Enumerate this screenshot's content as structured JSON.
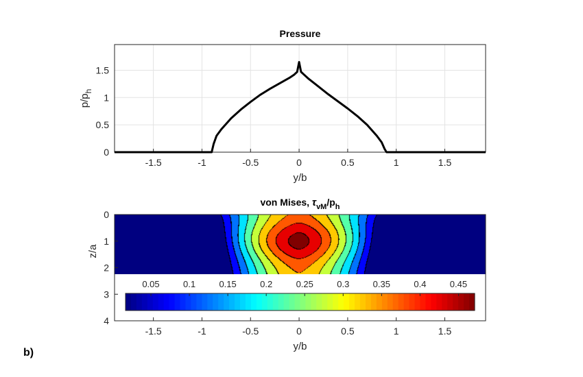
{
  "panel_label": "b)",
  "chart_data": [
    {
      "type": "line",
      "title": "Pressure",
      "xlabel": "y/b",
      "ylabel": "p/p",
      "ylabel_sub": "h",
      "xlim": [
        -1.9,
        1.92
      ],
      "ylim": [
        0,
        1.97
      ],
      "xticks": [
        -1.5,
        -1,
        -0.5,
        0,
        0.5,
        1,
        1.5
      ],
      "xtick_labels": [
        "-1.5",
        "-1",
        "-0.5",
        "0",
        "0.5",
        "1",
        "1.5"
      ],
      "yticks": [
        0,
        0.5,
        1,
        1.5
      ],
      "ytick_labels": [
        "0",
        "0.5",
        "1",
        "1.5"
      ],
      "grid": true,
      "series_color": "#000000",
      "contact_half_width": 0.9,
      "x": [
        -1.9,
        -0.9,
        -0.88,
        -0.85,
        -0.8,
        -0.7,
        -0.6,
        -0.5,
        -0.4,
        -0.3,
        -0.2,
        -0.1,
        -0.05,
        -0.02,
        0,
        0.02,
        0.05,
        0.1,
        0.2,
        0.3,
        0.4,
        0.5,
        0.6,
        0.7,
        0.8,
        0.85,
        0.88,
        0.9,
        1.92
      ],
      "y": [
        0,
        0,
        0.15,
        0.3,
        0.42,
        0.62,
        0.78,
        0.92,
        1.05,
        1.16,
        1.26,
        1.36,
        1.42,
        1.47,
        1.65,
        1.47,
        1.42,
        1.34,
        1.2,
        1.06,
        0.93,
        0.8,
        0.66,
        0.5,
        0.3,
        0.18,
        0.06,
        0,
        0
      ]
    },
    {
      "type": "heatmap",
      "title": "von Mises, ",
      "title_symbol": "τ",
      "title_sub": "vM",
      "title_rest": "/p",
      "title_sub2": "h",
      "xlabel": "y/b",
      "ylabel": "z/a",
      "xlim": [
        -1.9,
        1.92
      ],
      "ylim": [
        0,
        4
      ],
      "y_reversed": true,
      "xticks": [
        -1.5,
        -1,
        -0.5,
        0,
        0.5,
        1,
        1.5
      ],
      "xtick_labels": [
        "-1.5",
        "-1",
        "-0.5",
        "0",
        "0.5",
        "1",
        "1.5"
      ],
      "yticks": [
        0,
        1,
        2,
        3,
        4
      ],
      "ytick_labels": [
        "0",
        "1",
        "2",
        "3",
        "4"
      ],
      "field_depth": 2.25,
      "peak_value": 0.47,
      "peak_location": [
        0,
        1
      ],
      "contour_step": 0.05,
      "colormap": "jet",
      "colorbar": {
        "location": "inside-bottom",
        "range": [
          0.017,
          0.471
        ],
        "ticks": [
          0.05,
          0.1,
          0.15,
          0.2,
          0.25,
          0.3,
          0.35,
          0.4,
          0.45
        ],
        "tick_labels": [
          "0.05",
          "0.1",
          "0.15",
          "0.2",
          "0.25",
          "0.3",
          "0.35",
          "0.4",
          "0.45"
        ]
      }
    }
  ]
}
